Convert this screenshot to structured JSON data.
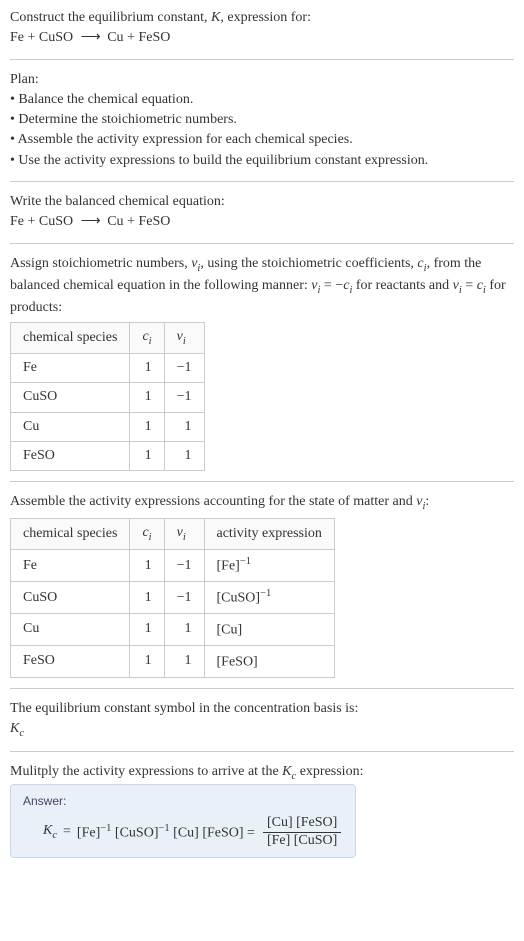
{
  "intro": {
    "line1": "Construct the equilibrium constant, ",
    "Ksym": "K",
    "line1b": ", expression for:",
    "eq_lhs1": "Fe",
    "eq_plus": " + ",
    "eq_lhs2": "CuSO",
    "eq_arrow": "⟶",
    "eq_rhs1": "Cu",
    "eq_rhs2": "FeSO"
  },
  "plan": {
    "heading": "Plan:",
    "items": [
      "Balance the chemical equation.",
      "Determine the stoichiometric numbers.",
      "Assemble the activity expression for each chemical species.",
      "Use the activity expressions to build the equilibrium constant expression."
    ]
  },
  "balanced": {
    "heading": "Write the balanced chemical equation:"
  },
  "stoich": {
    "para1a": "Assign stoichiometric numbers, ",
    "nu": "ν",
    "sub_i": "i",
    "para1b": ", using the stoichiometric coefficients, ",
    "c": "c",
    "para1c": ", from the balanced chemical equation in the following manner: ",
    "rel_react": " = −",
    "para1d": " for reactants and ",
    "rel_prod": " = ",
    "para1e": " for products:",
    "headers": {
      "h1": "chemical species",
      "h2": "c",
      "h3": "ν"
    },
    "rows": [
      {
        "species": "Fe",
        "c": "1",
        "nu": "−1"
      },
      {
        "species": "CuSO",
        "c": "1",
        "nu": "−1"
      },
      {
        "species": "Cu",
        "c": "1",
        "nu": "1"
      },
      {
        "species": "FeSO",
        "c": "1",
        "nu": "1"
      }
    ]
  },
  "activity": {
    "heading_a": "Assemble the activity expressions accounting for the state of matter and ",
    "heading_b": ":",
    "headers": {
      "h1": "chemical species",
      "h2": "c",
      "h3": "ν",
      "h4": "activity expression"
    },
    "rows": [
      {
        "species": "Fe",
        "c": "1",
        "nu": "−1",
        "act_base": "[Fe]",
        "act_exp": "−1"
      },
      {
        "species": "CuSO",
        "c": "1",
        "nu": "−1",
        "act_base": "[CuSO]",
        "act_exp": "−1"
      },
      {
        "species": "Cu",
        "c": "1",
        "nu": "1",
        "act_base": "[Cu]",
        "act_exp": ""
      },
      {
        "species": "FeSO",
        "c": "1",
        "nu": "1",
        "act_base": "[FeSO]",
        "act_exp": ""
      }
    ]
  },
  "kcsymbol": {
    "line": "The equilibrium constant symbol in the concentration basis is:",
    "K": "K",
    "c": "c"
  },
  "multiply": {
    "line_a": "Mulitply the activity expressions to arrive at the ",
    "K": "K",
    "c": "c",
    "line_b": " expression:"
  },
  "answer": {
    "label": "Answer:",
    "K": "K",
    "c": "c",
    "eq": " = ",
    "t1": "[Fe]",
    "e1": "−1",
    "t2": " [CuSO]",
    "e2": "−1",
    "t3": " [Cu] [FeSO] = ",
    "frac_num": "[Cu] [FeSO]",
    "frac_den": "[Fe] [CuSO]"
  }
}
